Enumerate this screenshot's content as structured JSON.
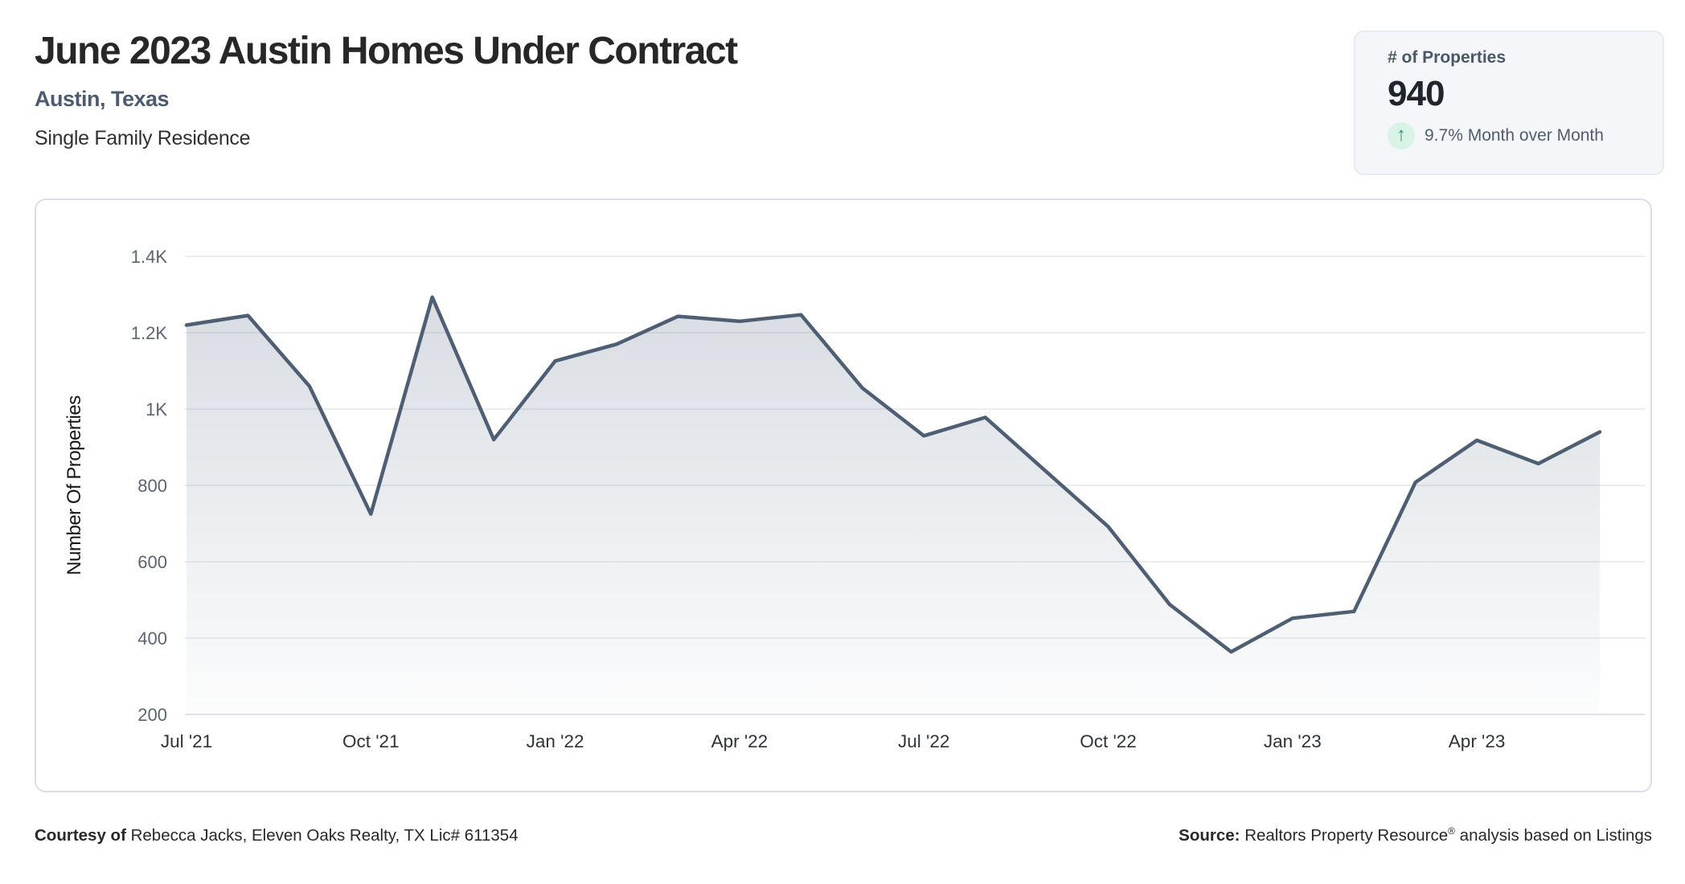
{
  "header": {
    "title": "June 2023 Austin Homes Under Contract",
    "location": "Austin, Texas",
    "property_type": "Single Family Residence"
  },
  "stat_card": {
    "label": "# of Properties",
    "value": "940",
    "trend_icon": "arrow-up-icon",
    "trend_arrow_glyph": "↑",
    "trend_text": "9.7% Month over Month"
  },
  "chart_data": {
    "type": "area",
    "title": "",
    "xlabel": "",
    "ylabel": "Number Of Properties",
    "ylim": [
      200,
      1400
    ],
    "grid": true,
    "legend": false,
    "categories": [
      "Jul '21",
      "Aug '21",
      "Sep '21",
      "Oct '21",
      "Nov '21",
      "Dec '21",
      "Jan '22",
      "Feb '22",
      "Mar '22",
      "Apr '22",
      "May '22",
      "Jun '22",
      "Jul '22",
      "Aug '22",
      "Sep '22",
      "Oct '22",
      "Nov '22",
      "Dec '22",
      "Jan '23",
      "Feb '23",
      "Mar '23",
      "Apr '23",
      "May '23",
      "Jun '23"
    ],
    "series": [
      {
        "name": "Homes Under Contract",
        "values": [
          1220,
          1245,
          1060,
          725,
          1293,
          920,
          1126,
          1170,
          1243,
          1230,
          1247,
          1055,
          930,
          978,
          835,
          692,
          488,
          364,
          452,
          470,
          808,
          918,
          857,
          940
        ]
      }
    ],
    "y_tick_labels": [
      "1.4K",
      "1.2K",
      "1K",
      "800",
      "600",
      "400",
      "200"
    ],
    "y_tick_values": [
      1400,
      1200,
      1000,
      800,
      600,
      400,
      200
    ],
    "x_tick_labels": [
      "Jul '21",
      "Oct '21",
      "Jan '22",
      "Apr '22",
      "Jul '22",
      "Oct '22",
      "Jan '23",
      "Apr '23"
    ],
    "x_tick_indices": [
      0,
      3,
      6,
      9,
      12,
      15,
      18,
      21
    ]
  },
  "colors": {
    "line": "#4e5e73",
    "area_top": "rgba(116,131,151,0.30)",
    "area_bottom": "rgba(116,131,151,0.02)",
    "gridline": "#ebedf1",
    "axis_line": "#dfe3e9",
    "y_tick_text": "#5a6472",
    "x_tick_text": "#2f3338",
    "axis_title_text": "#16181b",
    "trend_green": "#27a060"
  },
  "footer": {
    "courtesy_label": "Courtesy of",
    "courtesy_text": " Rebecca Jacks, Eleven Oaks Realty, TX Lic# 611354",
    "source_label": "Source:",
    "source_name": " Realtors Property Resource",
    "source_reg": "®",
    "source_rest": " analysis based on Listings"
  }
}
